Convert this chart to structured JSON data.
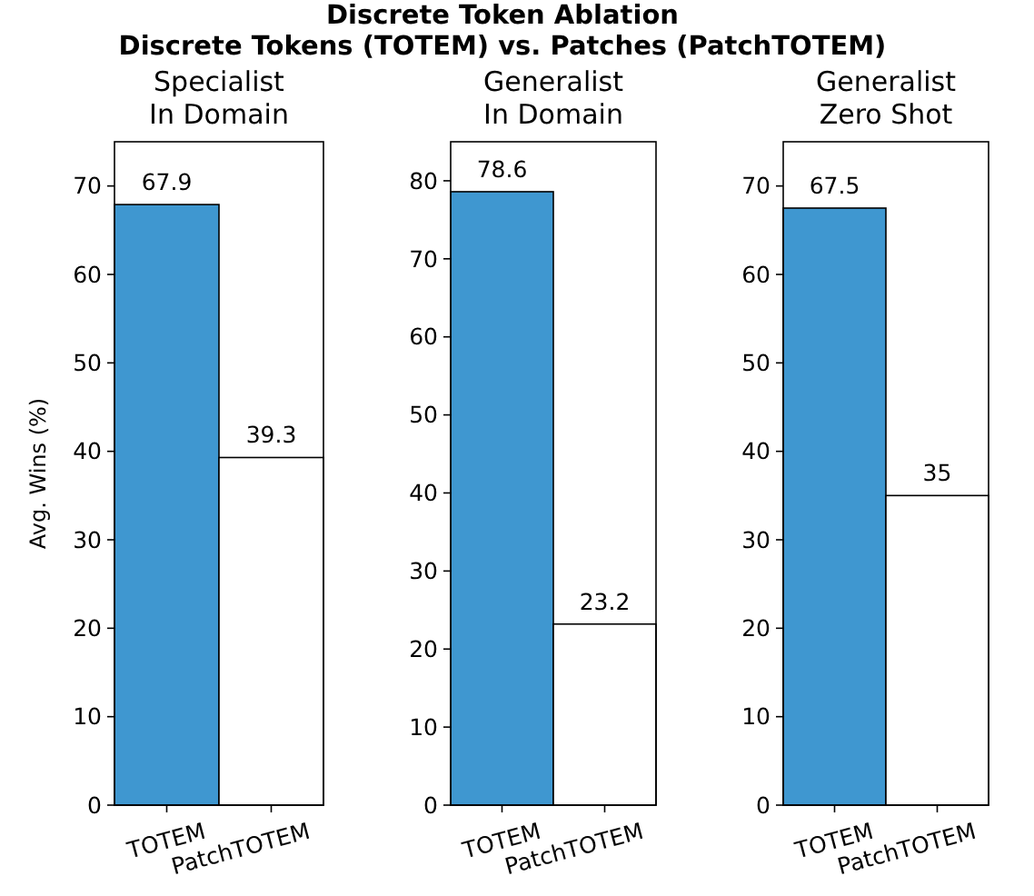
{
  "chart_data": [
    {
      "type": "bar",
      "title": "Specialist\nIn Domain",
      "annotations": [
        "Discrete Token Ablation\nDiscrete Tokens (TOTEM) vs. Patches (PatchTOTEM)"
      ],
      "ylabel": "Avg. Wins (%)",
      "categories": [
        "TOTEM",
        "PatchTOTEM"
      ],
      "values": [
        67.9,
        39.3
      ],
      "colors": [
        "#3f97d0",
        "#ffffff"
      ],
      "ylim": [
        0,
        75
      ],
      "yticks": [
        0,
        10,
        20,
        30,
        40,
        50,
        60,
        70
      ],
      "data_labels": true
    },
    {
      "type": "bar",
      "title": "Generalist\nIn Domain",
      "categories": [
        "TOTEM",
        "PatchTOTEM"
      ],
      "values": [
        78.6,
        23.2
      ],
      "colors": [
        "#3f97d0",
        "#ffffff"
      ],
      "ylim": [
        0,
        85
      ],
      "yticks": [
        0,
        10,
        20,
        30,
        40,
        50,
        60,
        70,
        80
      ],
      "data_labels": true
    },
    {
      "type": "bar",
      "title": "Generalist\nZero Shot",
      "categories": [
        "TOTEM",
        "PatchTOTEM"
      ],
      "values": [
        67.5,
        35
      ],
      "colors": [
        "#3f97d0",
        "#ffffff"
      ],
      "ylim": [
        0,
        75
      ],
      "yticks": [
        0,
        10,
        20,
        30,
        40,
        50,
        60,
        70
      ],
      "data_labels": true
    }
  ]
}
